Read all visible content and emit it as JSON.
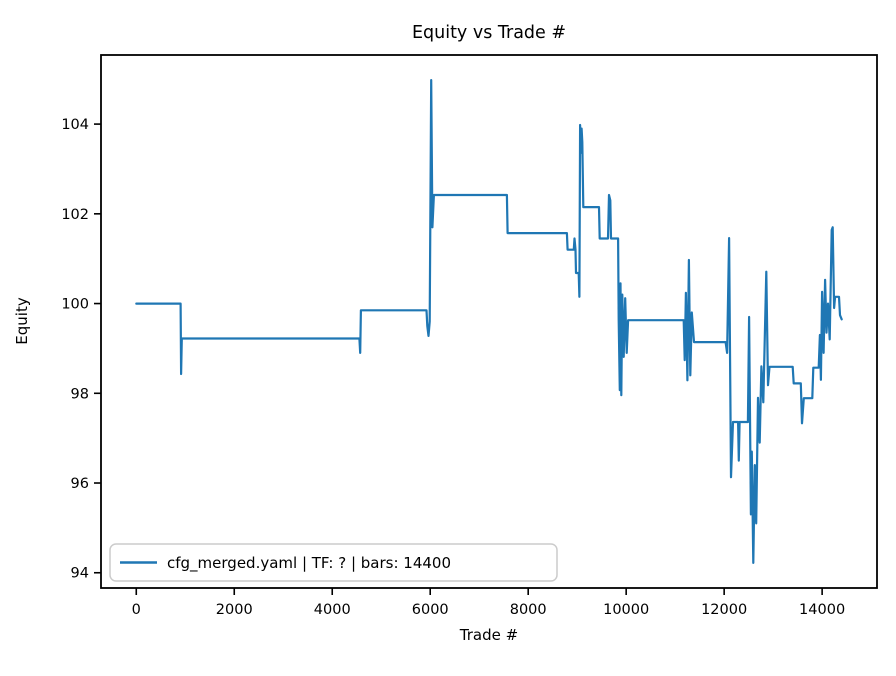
{
  "chart_data": {
    "type": "line",
    "title": "Equity vs Trade #",
    "xlabel": "Trade #",
    "ylabel": "Equity",
    "xlim": [
      -720,
      15120
    ],
    "ylim": [
      93.66,
      105.54
    ],
    "x_ticks": [
      0,
      2000,
      4000,
      6000,
      8000,
      10000,
      12000,
      14000
    ],
    "y_ticks": [
      94,
      96,
      98,
      100,
      102,
      104
    ],
    "grid": false,
    "legend_position": "lower left",
    "line_color": "#1f77b4",
    "axis_color": "#000000",
    "legend_border_color": "#cccccc",
    "series": [
      {
        "name": "cfg_merged.yaml | TF: ? | bars: 14400",
        "points": [
          [
            0,
            100.0
          ],
          [
            905,
            100.0
          ],
          [
            915,
            98.43
          ],
          [
            930,
            99.22
          ],
          [
            4555,
            99.22
          ],
          [
            4570,
            98.9
          ],
          [
            4585,
            99.85
          ],
          [
            5925,
            99.85
          ],
          [
            5940,
            99.5
          ],
          [
            5965,
            99.28
          ],
          [
            5990,
            99.6
          ],
          [
            6020,
            104.98
          ],
          [
            6045,
            101.7
          ],
          [
            6075,
            102.42
          ],
          [
            7565,
            102.42
          ],
          [
            7580,
            101.57
          ],
          [
            8790,
            101.57
          ],
          [
            8805,
            101.2
          ],
          [
            8930,
            101.2
          ],
          [
            8945,
            101.45
          ],
          [
            8965,
            101.2
          ],
          [
            8975,
            100.68
          ],
          [
            9030,
            100.68
          ],
          [
            9045,
            100.15
          ],
          [
            9060,
            103.98
          ],
          [
            9075,
            103.36
          ],
          [
            9090,
            103.9
          ],
          [
            9105,
            103.6
          ],
          [
            9125,
            102.15
          ],
          [
            9445,
            102.15
          ],
          [
            9460,
            101.45
          ],
          [
            9630,
            101.45
          ],
          [
            9650,
            102.42
          ],
          [
            9675,
            102.3
          ],
          [
            9690,
            101.45
          ],
          [
            9835,
            101.45
          ],
          [
            9848,
            99.63
          ],
          [
            9870,
            98.07
          ],
          [
            9885,
            100.45
          ],
          [
            9900,
            97.96
          ],
          [
            9920,
            100.2
          ],
          [
            9950,
            98.81
          ],
          [
            9980,
            100.12
          ],
          [
            10010,
            98.9
          ],
          [
            10040,
            99.63
          ],
          [
            11175,
            99.63
          ],
          [
            11195,
            98.74
          ],
          [
            11220,
            100.24
          ],
          [
            11250,
            98.29
          ],
          [
            11280,
            100.97
          ],
          [
            11310,
            98.4
          ],
          [
            11340,
            99.8
          ],
          [
            11385,
            99.14
          ],
          [
            12030,
            99.14
          ],
          [
            12060,
            98.9
          ],
          [
            12100,
            101.46
          ],
          [
            12140,
            96.13
          ],
          [
            12180,
            97.36
          ],
          [
            12285,
            97.36
          ],
          [
            12300,
            96.5
          ],
          [
            12315,
            97.36
          ],
          [
            12485,
            97.36
          ],
          [
            12510,
            99.7
          ],
          [
            12545,
            95.3
          ],
          [
            12565,
            96.7
          ],
          [
            12595,
            94.22
          ],
          [
            12625,
            96.4
          ],
          [
            12655,
            95.1
          ],
          [
            12690,
            97.9
          ],
          [
            12725,
            96.9
          ],
          [
            12760,
            98.6
          ],
          [
            12800,
            97.8
          ],
          [
            12860,
            100.71
          ],
          [
            12895,
            98.18
          ],
          [
            12925,
            98.59
          ],
          [
            13400,
            98.59
          ],
          [
            13420,
            98.22
          ],
          [
            13565,
            98.22
          ],
          [
            13590,
            97.33
          ],
          [
            13625,
            97.89
          ],
          [
            13800,
            97.89
          ],
          [
            13820,
            98.57
          ],
          [
            13930,
            98.57
          ],
          [
            13955,
            99.3
          ],
          [
            13975,
            98.3
          ],
          [
            14000,
            100.26
          ],
          [
            14030,
            98.9
          ],
          [
            14060,
            100.53
          ],
          [
            14090,
            99.35
          ],
          [
            14120,
            100.0
          ],
          [
            14155,
            99.2
          ],
          [
            14195,
            101.64
          ],
          [
            14215,
            101.7
          ],
          [
            14245,
            99.9
          ],
          [
            14265,
            100.15
          ],
          [
            14345,
            100.15
          ],
          [
            14365,
            99.74
          ],
          [
            14400,
            99.65
          ]
        ]
      }
    ]
  }
}
